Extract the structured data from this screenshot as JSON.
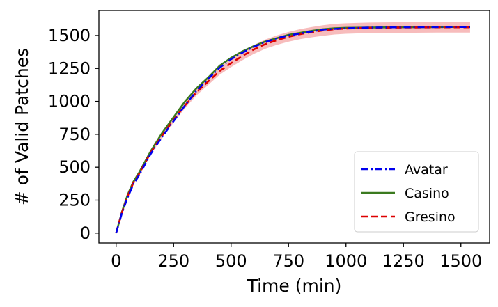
{
  "chart_data": {
    "type": "line",
    "title": "",
    "xlabel": "Time (min)",
    "ylabel": "# of Valid Patches",
    "xlim": [
      -75,
      1625
    ],
    "ylim": [
      -75,
      1690
    ],
    "xticks": [
      0,
      250,
      500,
      750,
      1000,
      1250,
      1500
    ],
    "yticks": [
      0,
      250,
      500,
      750,
      1000,
      1250,
      1500
    ],
    "grid": false,
    "legend_position": "lower-right",
    "series": [
      {
        "name": "Avatar",
        "color": "#0000ee",
        "dash": "dashdot",
        "x": [
          0,
          25,
          50,
          75,
          100,
          150,
          200,
          250,
          300,
          350,
          400,
          450,
          500,
          550,
          600,
          650,
          700,
          750,
          800,
          850,
          900,
          950,
          1000,
          1100,
          1200,
          1300,
          1400,
          1500,
          1540
        ],
        "y": [
          0,
          150,
          270,
          370,
          440,
          600,
          730,
          850,
          970,
          1080,
          1170,
          1255,
          1320,
          1370,
          1415,
          1450,
          1480,
          1500,
          1515,
          1530,
          1545,
          1550,
          1555,
          1560,
          1562,
          1563,
          1564,
          1565,
          1565
        ]
      },
      {
        "name": "Casino",
        "color": "#3b7a1f",
        "dash": "solid",
        "x": [
          0,
          25,
          50,
          75,
          100,
          150,
          200,
          250,
          300,
          350,
          400,
          450,
          500,
          550,
          600,
          650,
          700,
          750,
          800,
          850,
          900,
          950,
          1000,
          1100,
          1200,
          1300,
          1400,
          1500,
          1540
        ],
        "y": [
          0,
          160,
          290,
          390,
          460,
          620,
          760,
          880,
          1000,
          1100,
          1180,
          1270,
          1330,
          1380,
          1420,
          1455,
          1480,
          1505,
          1520,
          1535,
          1548,
          1555,
          1558,
          1560,
          1562,
          1563,
          1564,
          1565,
          1565
        ]
      },
      {
        "name": "Gresino",
        "color": "#dd0000",
        "dash": "dashed",
        "x": [
          0,
          25,
          50,
          75,
          100,
          150,
          200,
          250,
          300,
          350,
          400,
          450,
          500,
          550,
          600,
          650,
          700,
          750,
          800,
          850,
          900,
          950,
          1000,
          1100,
          1200,
          1300,
          1400,
          1500,
          1540
        ],
        "y": [
          0,
          155,
          280,
          380,
          450,
          610,
          740,
          860,
          970,
          1070,
          1150,
          1230,
          1290,
          1345,
          1395,
          1435,
          1465,
          1490,
          1510,
          1525,
          1538,
          1548,
          1553,
          1558,
          1560,
          1561,
          1562,
          1562,
          1562
        ],
        "band_halfwidth": [
          0,
          5,
          10,
          12,
          14,
          16,
          18,
          20,
          22,
          24,
          26,
          28,
          30,
          32,
          34,
          35,
          36,
          37,
          38,
          39,
          40,
          40,
          40,
          40,
          40,
          40,
          40,
          40,
          40
        ],
        "band_color": "#f4a6a6"
      }
    ]
  }
}
